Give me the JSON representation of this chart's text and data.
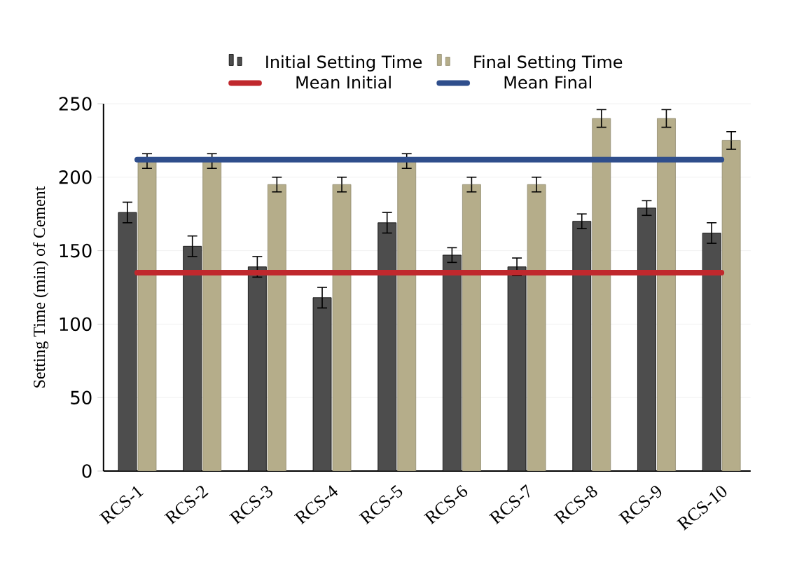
{
  "chart_data": {
    "type": "bar",
    "ylabel": "Setting Time (min) of Cement",
    "categories": [
      "RCS-1",
      "RCS-2",
      "RCS-3",
      "RCS-4",
      "RCS-5",
      "RCS-6",
      "RCS-7",
      "RCS-8",
      "RCS-9",
      "RCS-10"
    ],
    "series": [
      {
        "name": "Initial Setting Time",
        "color": "#4d4d4d",
        "values": [
          176,
          153,
          139,
          118,
          169,
          147,
          139,
          170,
          179,
          162
        ],
        "errors": [
          7,
          7,
          7,
          7,
          7,
          5,
          6,
          5,
          5,
          7
        ]
      },
      {
        "name": "Final Setting Time",
        "color": "#b5ad8a",
        "values": [
          211,
          211,
          195,
          195,
          211,
          195,
          195,
          240,
          240,
          225
        ],
        "errors": [
          5,
          5,
          5,
          5,
          5,
          5,
          5,
          6,
          6,
          6
        ]
      }
    ],
    "ref_lines": [
      {
        "axis": "y",
        "value": 135,
        "label": "Mean Initial",
        "color": "#c0282d"
      },
      {
        "axis": "y",
        "value": 212,
        "label": "Mean Final",
        "color": "#2f4e8c"
      }
    ],
    "ylim": [
      0,
      250
    ],
    "yticks": [
      0,
      50,
      100,
      150,
      200,
      250
    ],
    "grid": "y",
    "legend": "top"
  }
}
